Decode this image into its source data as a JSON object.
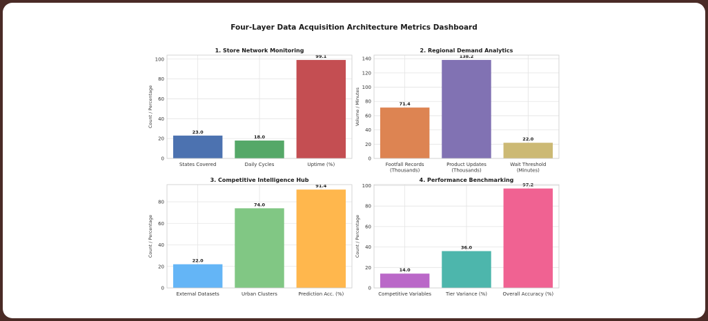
{
  "title": "Four-Layer Data Acquisition Architecture Metrics Dashboard",
  "chart_data": [
    {
      "type": "bar",
      "title": "1. Store Network Monitoring",
      "ylabel": "Count / Percentage",
      "categories": [
        [
          "States Covered"
        ],
        [
          "Daily Cycles"
        ],
        [
          "Uptime (%)"
        ]
      ],
      "values": [
        23.0,
        18.0,
        99.1
      ],
      "colors": [
        "#4c72b0",
        "#55a868",
        "#c44e52"
      ],
      "ylim": [
        0,
        104
      ],
      "yticks": [
        0,
        20,
        40,
        60,
        80,
        100
      ],
      "grid": true
    },
    {
      "type": "bar",
      "title": "2. Regional Demand Analytics",
      "ylabel": "Volume / Minutes",
      "categories": [
        [
          "Footfall Records",
          "(Thousands)"
        ],
        [
          "Product Updates",
          "(Thousands)"
        ],
        [
          "Wait Threshold",
          "(Minutes)"
        ]
      ],
      "values": [
        71.4,
        138.2,
        22.0
      ],
      "colors": [
        "#dd8452",
        "#8172b3",
        "#ccb974"
      ],
      "ylim": [
        0,
        145
      ],
      "yticks": [
        0,
        20,
        40,
        60,
        80,
        100,
        120,
        140
      ],
      "grid": true
    },
    {
      "type": "bar",
      "title": "3. Competitive Intelligence Hub",
      "ylabel": "Count / Percentage",
      "categories": [
        [
          "External Datasets"
        ],
        [
          "Urban Clusters"
        ],
        [
          "Prediction Acc. (%)"
        ]
      ],
      "values": [
        22.0,
        74.0,
        91.4
      ],
      "colors": [
        "#64b5f6",
        "#81c784",
        "#ffb74d"
      ],
      "ylim": [
        0,
        96
      ],
      "yticks": [
        0,
        20,
        40,
        60,
        80
      ],
      "grid": true
    },
    {
      "type": "bar",
      "title": "4. Performance Benchmarking",
      "ylabel": "Count / Percentage",
      "categories": [
        [
          "Competitive Variables"
        ],
        [
          "Tier Variance (%)"
        ],
        [
          "Overall Accuracy (%)"
        ]
      ],
      "values": [
        14.0,
        36.0,
        97.2
      ],
      "colors": [
        "#ba68c8",
        "#4db6ac",
        "#f06292"
      ],
      "ylim": [
        0,
        101
      ],
      "yticks": [
        0,
        20,
        40,
        60,
        80,
        100
      ],
      "grid": true
    }
  ]
}
